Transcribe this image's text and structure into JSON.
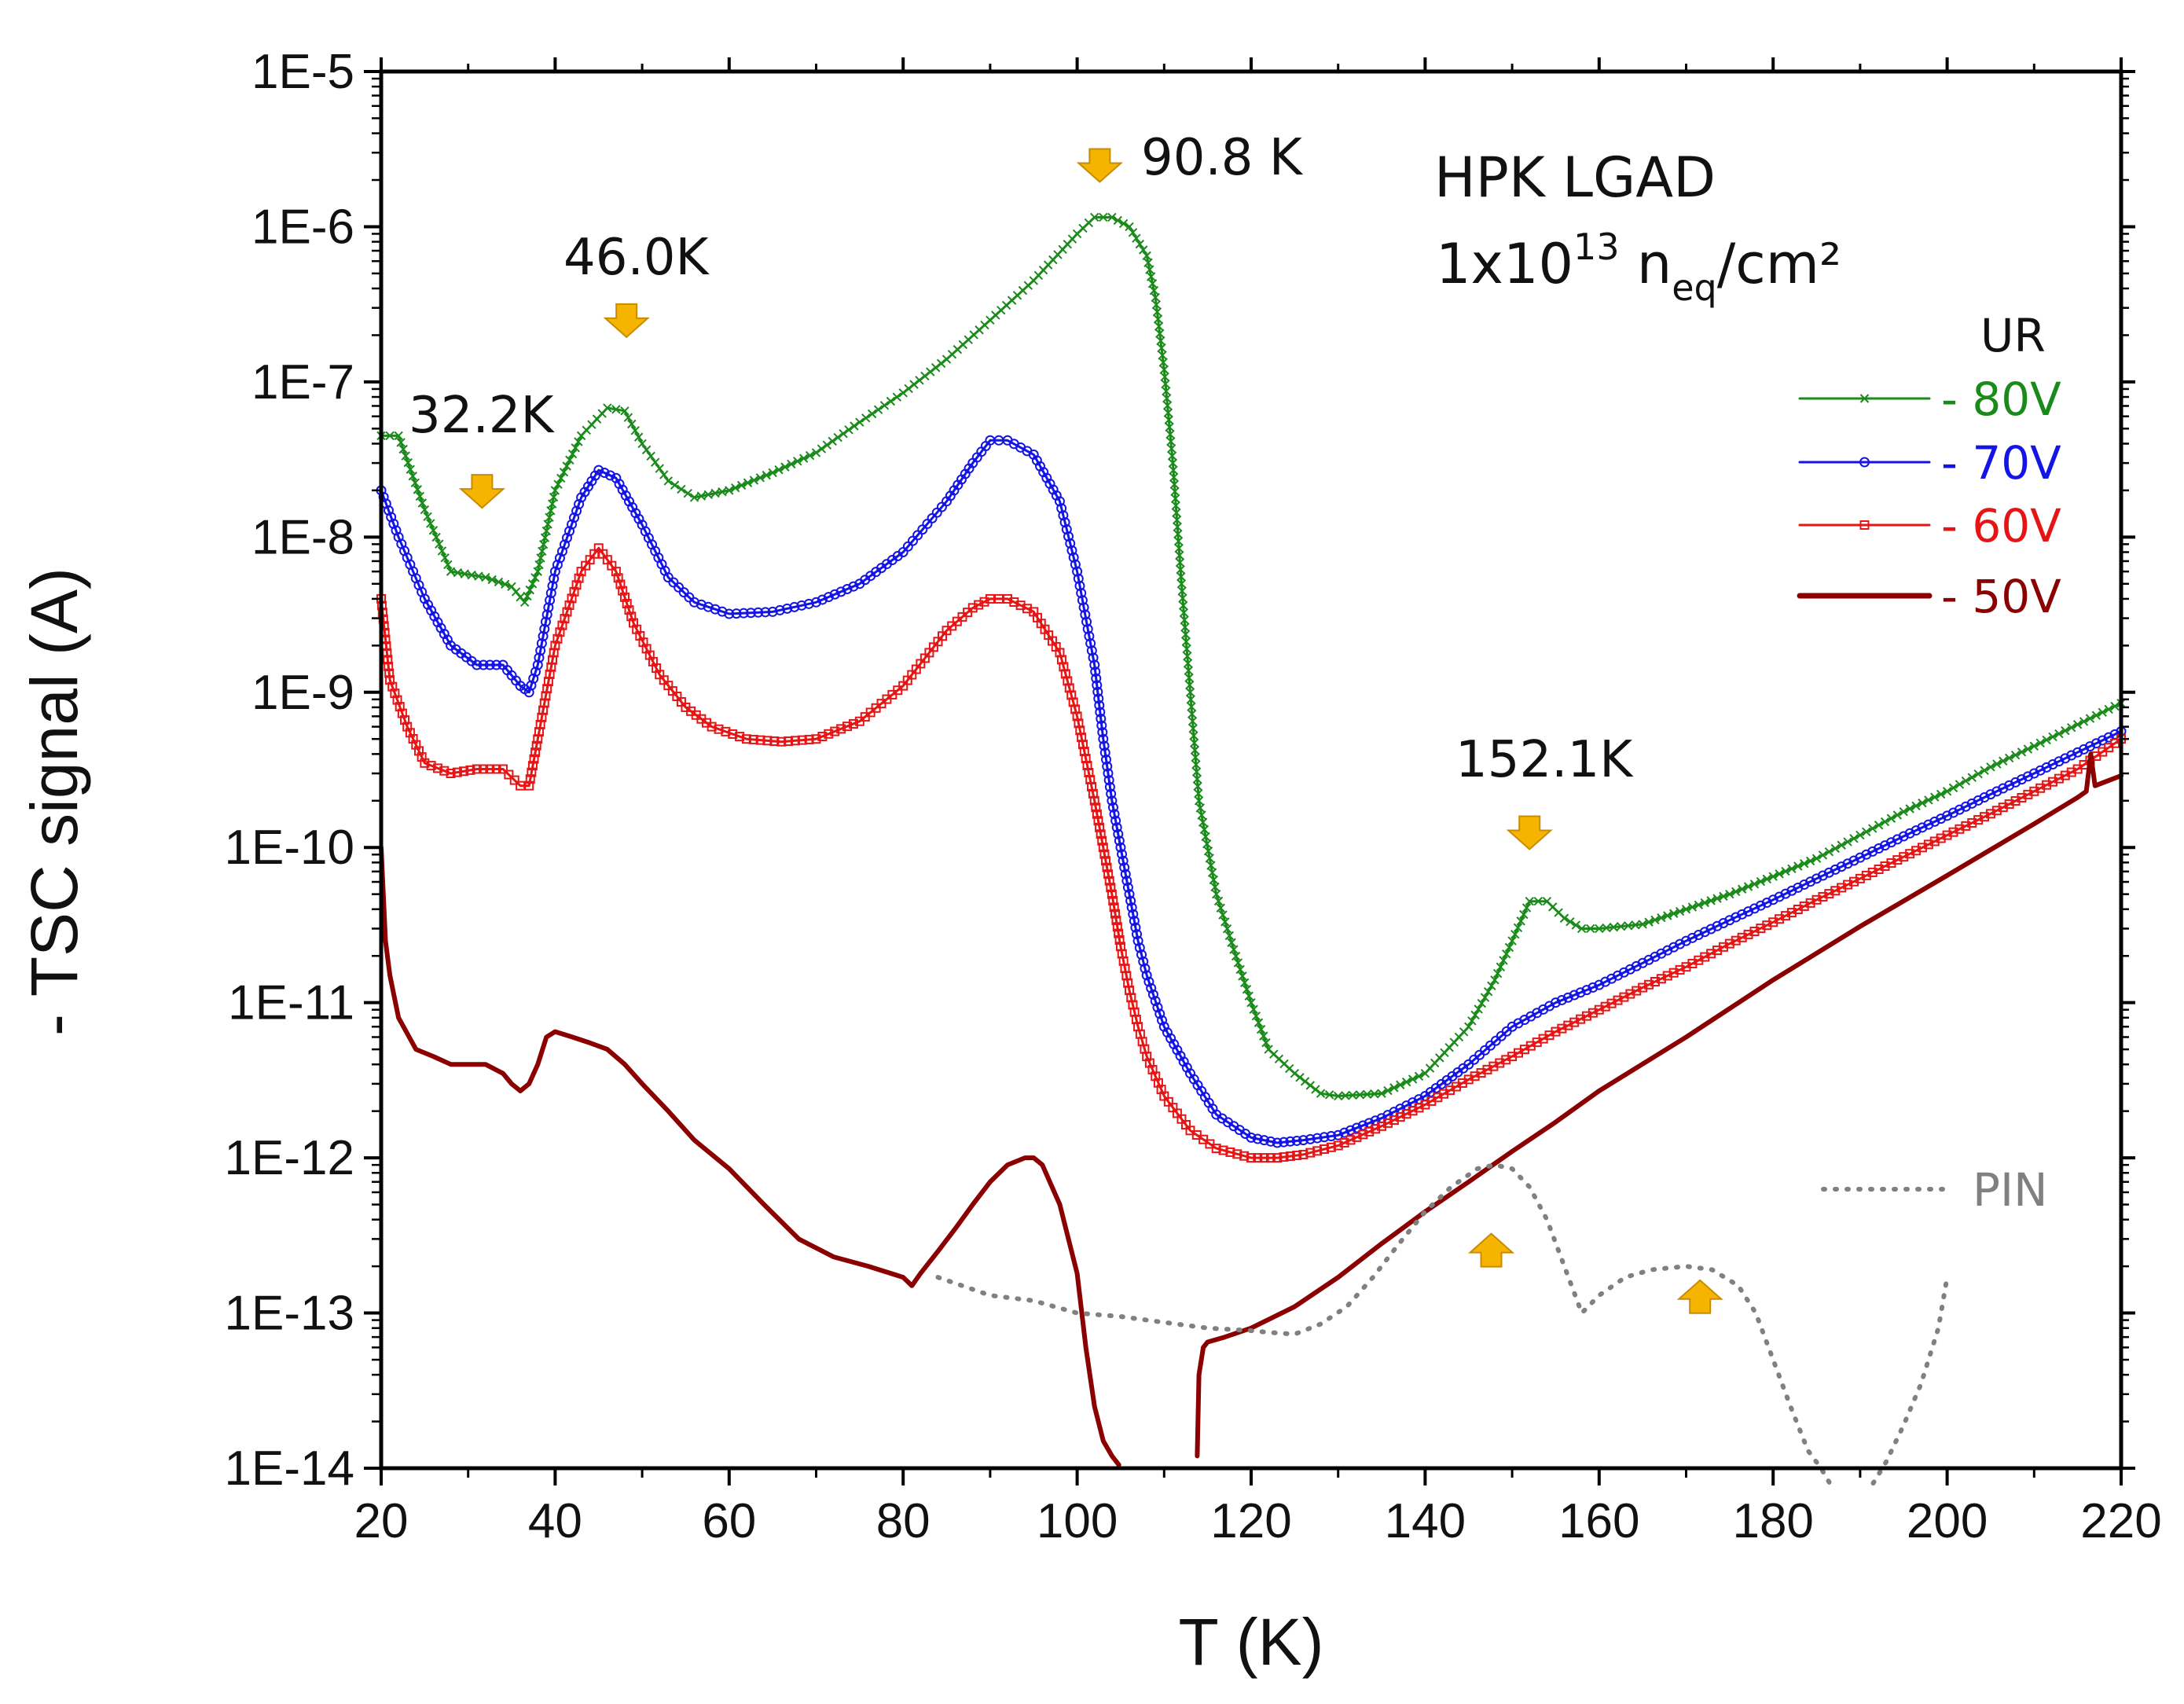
{
  "chart_data": {
    "type": "line",
    "title": "",
    "info_title": "HPK LGAD",
    "info_fluence": {
      "base": "1x10",
      "exp": "13",
      "unit_pre": " n",
      "unit_sub": "eq",
      "unit_post": "/cm²"
    },
    "xlabel": "T (K)",
    "ylabel": "- TSC signal (A)",
    "xlim": [
      20,
      220
    ],
    "ylim_log10": [
      -14,
      -5
    ],
    "yscale": "log",
    "x_ticks": [
      "20",
      "40",
      "60",
      "80",
      "100",
      "120",
      "140",
      "160",
      "180",
      "200",
      "220"
    ],
    "y_ticks": [
      "1E-5",
      "1E-6",
      "1E-7",
      "1E-8",
      "1E-9",
      "1E-10",
      "1E-11",
      "1E-12",
      "1E-13",
      "1E-14"
    ],
    "legend_title": "UR",
    "legend_position": "right",
    "series": [
      {
        "name": "- 80V",
        "color": "#1a8a1a",
        "marker": "x",
        "x": [
          20,
          22,
          25,
          28,
          32,
          35,
          36.5,
          38,
          40,
          43,
          46,
          48,
          50,
          53,
          56,
          60,
          65,
          70,
          75,
          80,
          85,
          90,
          95,
          100,
          102,
          104,
          106,
          108,
          109,
          110,
          111,
          112,
          113,
          114,
          116,
          118,
          120,
          122,
          125,
          128,
          130,
          135,
          140,
          145,
          148,
          150,
          152,
          154,
          156,
          158,
          160,
          165,
          170,
          175,
          180,
          185,
          190,
          195,
          200,
          205,
          210,
          215,
          220
        ],
        "y": [
          4.5e-08,
          4.5e-08,
          1.5e-08,
          6e-09,
          5.5e-09,
          4.8e-09,
          3.8e-09,
          6e-09,
          2e-08,
          4.5e-08,
          6.8e-08,
          6.5e-08,
          4e-08,
          2.3e-08,
          1.8e-08,
          2e-08,
          2.6e-08,
          3.5e-08,
          5.5e-08,
          8.5e-08,
          1.4e-07,
          2.5e-07,
          4.5e-07,
          9e-07,
          1.15e-06,
          1.15e-06,
          1e-06,
          6.5e-07,
          3.5e-07,
          1.2e-07,
          3e-08,
          5e-09,
          1e-09,
          2e-10,
          5e-11,
          2.2e-11,
          1e-11,
          5e-12,
          3.5e-12,
          2.6e-12,
          2.5e-12,
          2.6e-12,
          3.5e-12,
          7e-12,
          1.4e-11,
          2.5e-11,
          4.5e-11,
          4.5e-11,
          3.5e-11,
          3e-11,
          3e-11,
          3.2e-11,
          4e-11,
          5e-11,
          6.5e-11,
          8.5e-11,
          1.2e-10,
          1.7e-10,
          2.3e-10,
          3.3e-10,
          4.5e-10,
          6.2e-10,
          8.5e-10
        ]
      },
      {
        "name": "- 70V",
        "color": "#1414e6",
        "marker": "o",
        "x": [
          20,
          22,
          25,
          28,
          31,
          34,
          36,
          37,
          38,
          40,
          43,
          45,
          47,
          50,
          53,
          56,
          60,
          65,
          70,
          75,
          80,
          85,
          88,
          90,
          92,
          95,
          98,
          100,
          102,
          103,
          104,
          105,
          106,
          107,
          108,
          110,
          113,
          116,
          120,
          123,
          126,
          130,
          135,
          140,
          145,
          150,
          155,
          160,
          165,
          170,
          175,
          180,
          185,
          190,
          195,
          200,
          205,
          210,
          215,
          220
        ],
        "y": [
          2e-08,
          1e-08,
          4e-09,
          2e-09,
          1.5e-09,
          1.5e-09,
          1.1e-09,
          1e-09,
          1.5e-09,
          6e-09,
          1.8e-08,
          2.7e-08,
          2.4e-08,
          1.2e-08,
          5.5e-09,
          3.8e-09,
          3.2e-09,
          3.3e-09,
          3.8e-09,
          5e-09,
          8e-09,
          1.7e-08,
          3e-08,
          4.2e-08,
          4.2e-08,
          3.4e-08,
          1.7e-08,
          6e-09,
          1.5e-09,
          5e-10,
          2e-10,
          1e-10,
          5e-11,
          2.5e-11,
          1.5e-11,
          7e-12,
          3.5e-12,
          1.9e-12,
          1.35e-12,
          1.25e-12,
          1.3e-12,
          1.4e-12,
          1.8e-12,
          2.5e-12,
          4e-12,
          7e-12,
          1e-11,
          1.3e-11,
          1.8e-11,
          2.5e-11,
          3.4e-11,
          4.6e-11,
          6.3e-11,
          8.6e-11,
          1.18e-10,
          1.6e-10,
          2.2e-10,
          3e-10,
          4.1e-10,
          5.6e-10
        ]
      },
      {
        "name": "- 60V",
        "color": "#e61414",
        "marker": "s",
        "x": [
          20,
          21,
          23,
          25,
          28,
          31,
          34,
          36,
          37,
          38,
          40,
          43,
          45,
          47,
          49,
          52,
          55,
          58,
          62,
          66,
          70,
          75,
          80,
          85,
          88,
          90,
          92,
          95,
          98,
          100,
          102,
          103,
          104,
          105,
          106,
          107,
          108,
          110,
          113,
          116,
          120,
          123,
          126,
          130,
          135,
          140,
          145,
          150,
          155,
          160,
          165,
          170,
          175,
          180,
          185,
          190,
          195,
          200,
          205,
          210,
          215,
          220
        ],
        "y": [
          4e-09,
          1.2e-09,
          6e-10,
          3.5e-10,
          3e-10,
          3.2e-10,
          3.2e-10,
          2.5e-10,
          2.5e-10,
          5e-10,
          2e-09,
          6e-09,
          8.5e-09,
          6e-09,
          2.8e-09,
          1.3e-09,
          8e-10,
          6e-10,
          5e-10,
          4.8e-10,
          5e-10,
          6.5e-10,
          1.1e-09,
          2.5e-09,
          3.5e-09,
          4e-09,
          4e-09,
          3.3e-09,
          1.8e-09,
          7e-10,
          2e-10,
          1e-10,
          5e-11,
          2.3e-11,
          1.2e-11,
          7e-12,
          4.5e-12,
          2.5e-12,
          1.5e-12,
          1.15e-12,
          1e-12,
          1e-12,
          1.05e-12,
          1.2e-12,
          1.6e-12,
          2.2e-12,
          3.2e-12,
          4.5e-12,
          6.5e-12,
          9e-12,
          1.25e-11,
          1.7e-11,
          2.4e-11,
          3.3e-11,
          4.6e-11,
          6.3e-11,
          8.7e-11,
          1.2e-10,
          1.65e-10,
          2.3e-10,
          3.2e-10,
          5e-10
        ]
      },
      {
        "name": "- 50V",
        "color": "#8b0000",
        "marker": "line",
        "x": [
          20,
          20.5,
          21,
          22,
          24,
          26,
          28,
          30,
          32,
          34,
          35,
          36,
          37,
          38,
          39,
          40,
          42,
          44,
          46,
          48,
          50,
          53,
          56,
          60,
          64,
          68,
          72,
          76,
          80,
          81,
          82,
          84,
          86,
          88,
          90,
          92,
          94,
          95,
          96,
          98,
          100,
          101,
          102,
          103,
          104,
          104.8,
          null,
          113.8,
          114,
          114.5,
          115,
          117,
          120,
          125,
          130,
          135,
          140,
          145,
          150,
          155,
          160,
          170,
          180,
          190,
          200,
          210,
          215,
          216,
          216.5,
          217,
          220
        ],
        "y": [
          1e-10,
          2.5e-11,
          1.5e-11,
          8e-12,
          5e-12,
          4.5e-12,
          4e-12,
          4e-12,
          4e-12,
          3.5e-12,
          3e-12,
          2.7e-12,
          3e-12,
          4e-12,
          6e-12,
          6.5e-12,
          6e-12,
          5.5e-12,
          5e-12,
          4e-12,
          3e-12,
          2e-12,
          1.3e-12,
          8.5e-13,
          5e-13,
          3e-13,
          2.3e-13,
          2e-13,
          1.7e-13,
          1.5e-13,
          1.8e-13,
          2.5e-13,
          3.5e-13,
          5e-13,
          7e-13,
          9e-13,
          1e-12,
          1e-12,
          9e-13,
          5e-13,
          1.8e-13,
          6e-14,
          2.5e-14,
          1.5e-14,
          1.2e-14,
          1.05e-14,
          null,
          1.2e-14,
          4e-14,
          6e-14,
          6.5e-14,
          7e-14,
          8e-14,
          1.1e-13,
          1.7e-13,
          2.8e-13,
          4.5e-13,
          7e-13,
          1.1e-12,
          1.7e-12,
          2.7e-12,
          6e-12,
          1.4e-11,
          3.1e-11,
          6.6e-11,
          1.42e-10,
          2.1e-10,
          2.3e-10,
          4e-10,
          2.5e-10,
          2.9e-10
        ]
      },
      {
        "name": "PIN",
        "color": "#808080",
        "marker": "dotted",
        "x": [
          84,
          90,
          95,
          100,
          105,
          110,
          115,
          120,
          122,
          125,
          128,
          131,
          134,
          137,
          140,
          143,
          146,
          148,
          150,
          152,
          154,
          156,
          158,
          160,
          163,
          166,
          170,
          173,
          176,
          178,
          180,
          182,
          184,
          185.5,
          186.5,
          null,
          191.5,
          193,
          195,
          197,
          199,
          200
        ],
        "y": [
          1.7e-13,
          1.3e-13,
          1.2e-13,
          1e-13,
          9.5e-14,
          8.7e-14,
          8e-14,
          7.7e-14,
          7.5e-14,
          7.3e-14,
          8.5e-14,
          1.1e-13,
          1.7e-13,
          2.8e-13,
          4.5e-13,
          6.5e-13,
          8.5e-13,
          9e-13,
          8.5e-13,
          6.5e-13,
          4e-13,
          2e-13,
          1e-13,
          1.3e-13,
          1.7e-13,
          1.9e-13,
          2e-13,
          1.9e-13,
          1.5e-13,
          1e-13,
          5e-14,
          2.5e-14,
          1.3e-14,
          1e-14,
          8e-15,
          null,
          8e-15,
          1.1e-14,
          1.9e-14,
          3.5e-14,
          8e-14,
          1.7e-13
        ]
      }
    ],
    "annotations": [
      {
        "text": "32.2K",
        "arrow_x": 31.6,
        "arrow_log": -7.7,
        "dir": "down"
      },
      {
        "text": "46.0K",
        "arrow_x": 48.2,
        "arrow_log": -6.6,
        "dir": "down"
      },
      {
        "text": "90.8 K",
        "arrow_x": 102.6,
        "arrow_log": -5.6,
        "dir": "down"
      },
      {
        "text": "152.1K",
        "arrow_x": 152.0,
        "arrow_log": -9.9,
        "dir": "down"
      },
      {
        "text": "",
        "arrow_x": 147.6,
        "arrow_log": -12.6,
        "dir": "up"
      },
      {
        "text": "",
        "arrow_x": 171.6,
        "arrow_log": -12.9,
        "dir": "up"
      }
    ],
    "arrow_color": "#f5b400"
  }
}
